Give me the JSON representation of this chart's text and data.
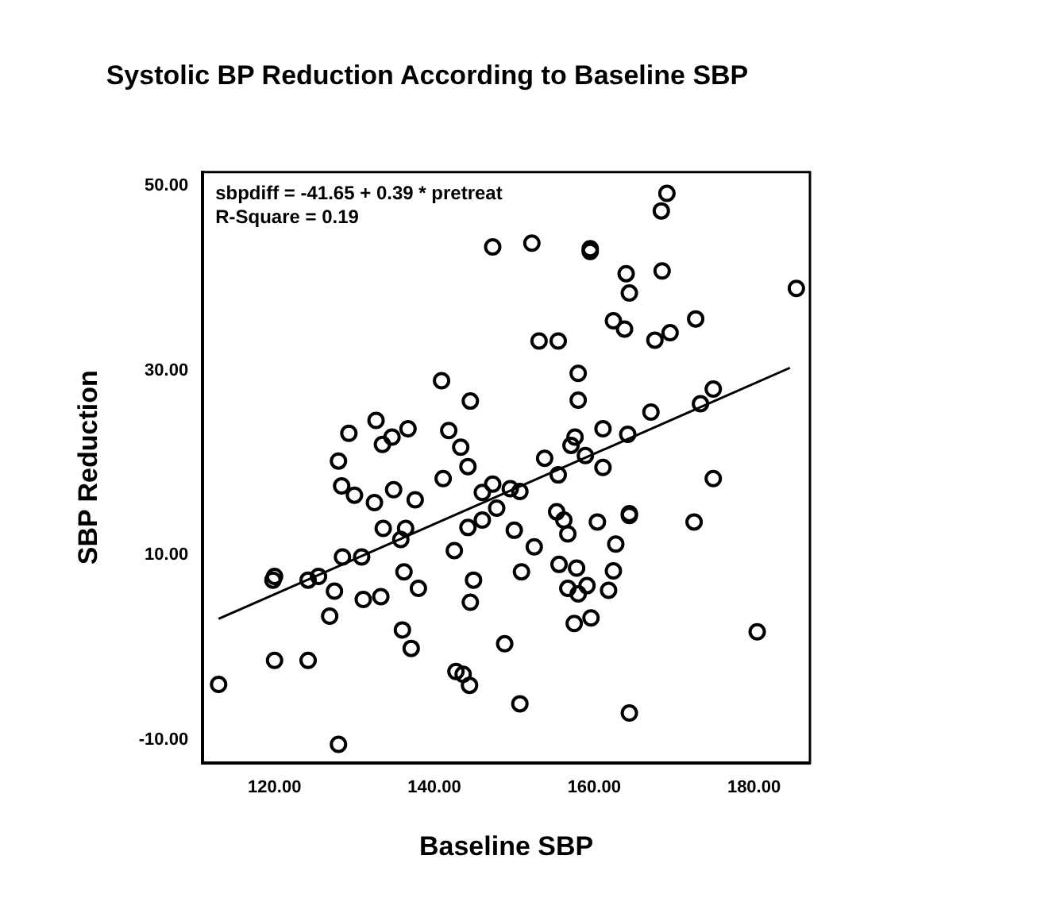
{
  "chart_data": {
    "type": "scatter",
    "title": "Systolic BP Reduction According to Baseline SBP",
    "xlabel": "Baseline SBP",
    "ylabel": "SBP Reduction",
    "annotations": [
      "sbpdiff = -41.65 + 0.39 * pretreat",
      "R-Square = 0.19"
    ],
    "xlim": [
      111,
      187
    ],
    "ylim": [
      -12.5,
      51.5
    ],
    "xticks": [
      {
        "value": 120,
        "label": "120.00"
      },
      {
        "value": 140,
        "label": "140.00"
      },
      {
        "value": 160,
        "label": "160.00"
      },
      {
        "value": 180,
        "label": "180.00"
      }
    ],
    "yticks": [
      {
        "value": -10,
        "label": "-10.00"
      },
      {
        "value": 10,
        "label": "10.00"
      },
      {
        "value": 30,
        "label": "30.00"
      },
      {
        "value": 50,
        "label": "50.00"
      }
    ],
    "grid": false,
    "legend": false,
    "marker": "circle",
    "series": [
      {
        "color": "#000000",
        "x": [
          113,
          120,
          119.8,
          120,
          124.2,
          125.5,
          124.2,
          128,
          128,
          128.4,
          130,
          128.5,
          127.5,
          126.9,
          130.9,
          131.1,
          133.3,
          133.6,
          132.5,
          134.9,
          136.4,
          135.8,
          136.2,
          138,
          136,
          137.1,
          137.6,
          141.1,
          144.2,
          146,
          147.3,
          147.8,
          146,
          144.2,
          142.5,
          144.9,
          144.5,
          142.7,
          143.6,
          144.4,
          148.8,
          153.8,
          158.9,
          161.1,
          155.5,
          149.5,
          150.7,
          150,
          152.5,
          150.9,
          155.3,
          156.2,
          156.7,
          160.4,
          164.4,
          164.4,
          162.7,
          155.6,
          157.8,
          162.4,
          156.7,
          159.1,
          158,
          161.8,
          157.5,
          159.6,
          150.7,
          164.4,
          174.9,
          172.5,
          180.4,
          147.3,
          140.9,
          144.5,
          132.7,
          129.3,
          136.7,
          134.7,
          133.5,
          141.8,
          143.3,
          169.1,
          168.4,
          152.2,
          159.5,
          159.5,
          164,
          164.4,
          168.5,
          185.3,
          162.4,
          163.8,
          172.7,
          167.6,
          169.5,
          153.1,
          155.5,
          158,
          158,
          167.1,
          161.1,
          164.2,
          174.9,
          173.3,
          157.6,
          157.1
        ],
        "values": [
          -4,
          -1.4,
          7.3,
          7.7,
          7.3,
          7.7,
          -1.4,
          -10.5,
          20.2,
          17.5,
          16.5,
          9.8,
          6.1,
          3.4,
          9.8,
          5.2,
          5.5,
          12.9,
          15.7,
          17.1,
          12.9,
          11.7,
          8.2,
          6.4,
          1.9,
          -0.1,
          16,
          18.3,
          19.6,
          16.8,
          17.7,
          15.1,
          13.8,
          13,
          10.5,
          7.3,
          4.9,
          -2.6,
          -2.9,
          -4.1,
          0.4,
          20.5,
          20.8,
          19.5,
          18.7,
          17.2,
          16.9,
          12.7,
          10.9,
          8.2,
          14.7,
          13.8,
          12.3,
          13.6,
          14.5,
          14.3,
          11.2,
          9,
          8.6,
          8.3,
          6.4,
          6.7,
          5.8,
          6.2,
          2.6,
          3.2,
          -6.1,
          -7.1,
          18.3,
          13.6,
          1.7,
          43.4,
          28.9,
          26.7,
          24.6,
          23.2,
          23.7,
          22.8,
          22,
          23.5,
          21.7,
          49.2,
          47.3,
          43.8,
          43.2,
          42.9,
          40.5,
          38.4,
          40.8,
          38.9,
          35.4,
          34.5,
          35.6,
          33.3,
          34.1,
          33.2,
          33.2,
          29.7,
          26.8,
          25.5,
          23.7,
          23.1,
          28,
          26.4,
          22.8,
          21.9
        ]
      },
      {
        "type": "line",
        "color": "#000000",
        "marker": "none",
        "line_style": "solid",
        "x": [
          113,
          184.5
        ],
        "values": [
          3.1,
          30.3
        ]
      }
    ]
  }
}
